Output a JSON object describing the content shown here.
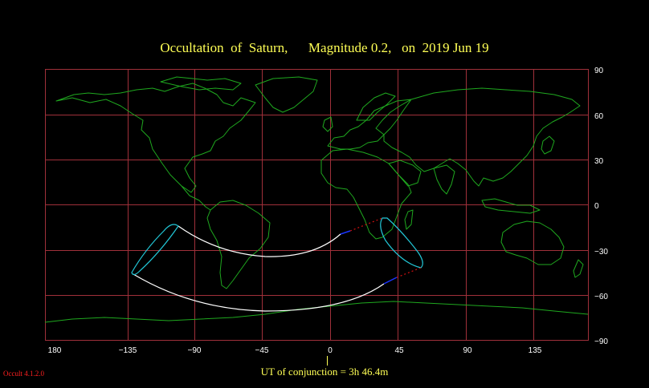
{
  "title": "Occultation  of  Saturn,      Magnitude 0.2,   on  2019 Jun 19",
  "map": {
    "lon_labels": [
      "180",
      "−135",
      "−90",
      "−45",
      "0",
      "45",
      "90",
      "135"
    ],
    "lat_labels": [
      "90",
      "60",
      "30",
      "0",
      "−30",
      "−60",
      "−90"
    ],
    "colors": {
      "grid": "#a0303a",
      "coast": "#1fa81f",
      "path": "#ffffff",
      "limit_ellipse": "#22c8d8",
      "terminator_segment": "#1a35ff",
      "daylight_dots": "#d01010"
    }
  },
  "conjunction": {
    "label": "UT of conjunction =  3h 46.4m"
  },
  "version": "Occult 4.1.2.0"
}
